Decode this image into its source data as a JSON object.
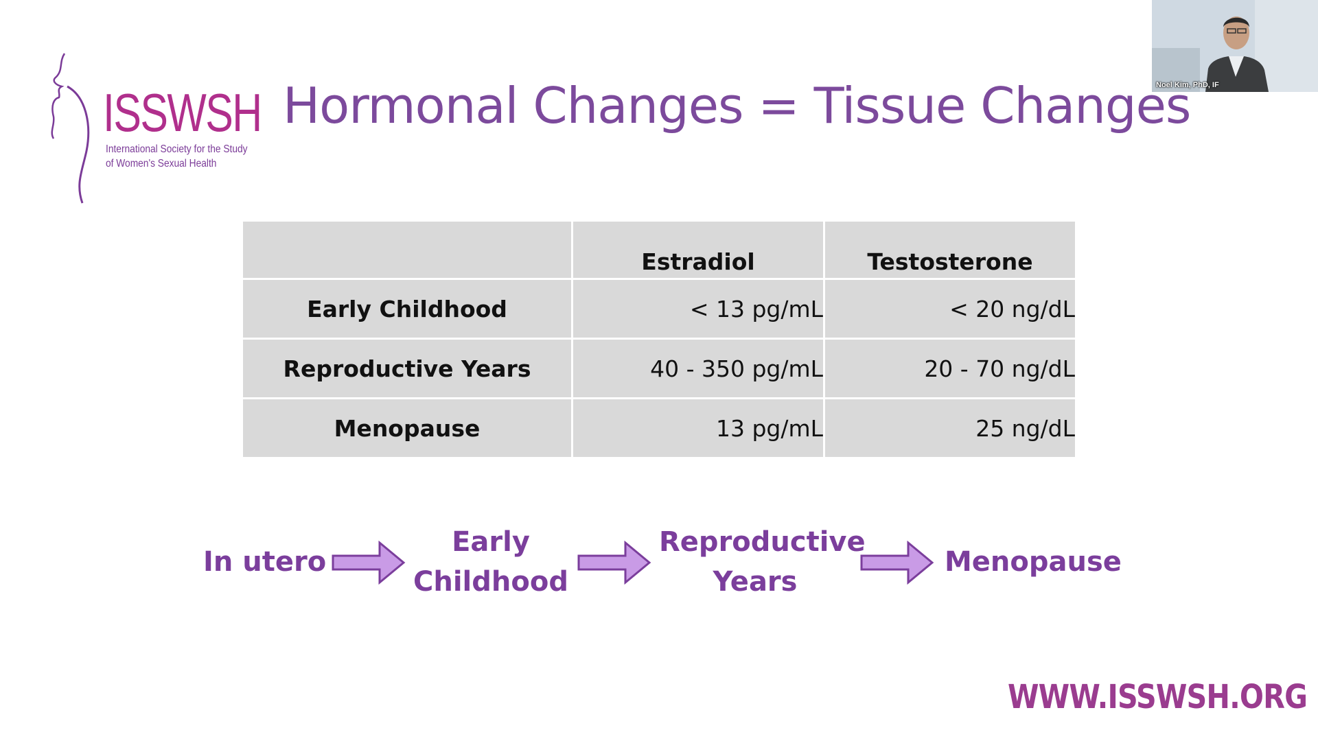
{
  "logo": {
    "name": "ISSWSH",
    "tagline_line1": "International Society for the Study",
    "tagline_line2": "of Women's Sexual Health"
  },
  "slide": {
    "title": "Hormonal Changes = Tissue Changes"
  },
  "video": {
    "participant_name": "Noel Kim, PhD, IF"
  },
  "table": {
    "columns": [
      "",
      "Estradiol",
      "Testosterone"
    ],
    "rows": [
      {
        "label": "Early Childhood",
        "estradiol": "< 13 pg/mL",
        "testosterone": "< 20 ng/dL"
      },
      {
        "label": "Reproductive Years",
        "estradiol": "40 - 350 pg/mL",
        "testosterone": "20 - 70 ng/dL"
      },
      {
        "label": "Menopause",
        "estradiol": "13 pg/mL",
        "testosterone": "25 ng/dL"
      }
    ]
  },
  "flow": {
    "steps": [
      {
        "line1": "In utero",
        "line2": ""
      },
      {
        "line1": "Early",
        "line2": "Childhood"
      },
      {
        "line1": "Reproductive",
        "line2": "Years"
      },
      {
        "line1": "Menopause",
        "line2": ""
      }
    ]
  },
  "footer": {
    "url": "WWW.ISSWSH.ORG"
  },
  "colors": {
    "title": "#7c4a9c",
    "logo_brand": "#b02f8c",
    "arrow_fill": "#c99be6",
    "arrow_stroke": "#7b3e9c",
    "table_cell": "#d9d9d9"
  },
  "icons": [
    "isswsh-logo-figure",
    "right-arrow-icon"
  ]
}
